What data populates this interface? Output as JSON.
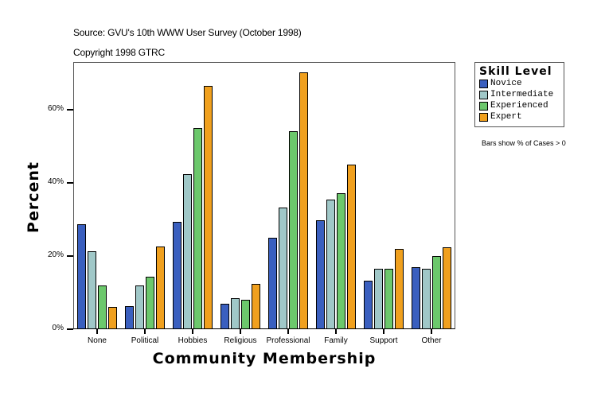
{
  "header": {
    "source": "Source: GVU's 10th WWW User Survey (October 1998)",
    "copyright": "Copyright 1998 GTRC"
  },
  "legend": {
    "title": "Skill Level",
    "items": [
      {
        "label": "Novice",
        "color": "#3a5fbf"
      },
      {
        "label": "Intermediate",
        "color": "#a0c8c8"
      },
      {
        "label": "Experienced",
        "color": "#6cc86c"
      },
      {
        "label": "Expert",
        "color": "#f0a01e"
      }
    ]
  },
  "note": "Bars show % of Cases > 0",
  "chart_data": {
    "type": "bar",
    "title": "",
    "xlabel": "Community Membership",
    "ylabel": "Percent",
    "ylim": [
      0,
      73
    ],
    "yticks": [
      "0%",
      "20%",
      "40%",
      "60%"
    ],
    "grid": false,
    "legend_position": "right",
    "categories": [
      "None",
      "Political",
      "Hobbies",
      "Religious",
      "Professional",
      "Family",
      "Support",
      "Other"
    ],
    "series": [
      {
        "name": "Novice",
        "color": "#3a5fbf",
        "values": [
          28.8,
          6.2,
          29.3,
          7.0,
          24.9,
          29.7,
          13.2,
          16.9
        ]
      },
      {
        "name": "Intermediate",
        "color": "#a0c8c8",
        "values": [
          21.2,
          11.9,
          42.4,
          8.4,
          33.2,
          35.4,
          16.5,
          16.5
        ]
      },
      {
        "name": "Experienced",
        "color": "#6cc86c",
        "values": [
          11.9,
          14.3,
          55.1,
          8.0,
          54.1,
          37.1,
          16.5,
          19.9
        ]
      },
      {
        "name": "Expert",
        "color": "#f0a01e",
        "values": [
          6.0,
          22.6,
          66.5,
          12.3,
          70.2,
          44.9,
          21.9,
          22.5
        ]
      }
    ]
  }
}
